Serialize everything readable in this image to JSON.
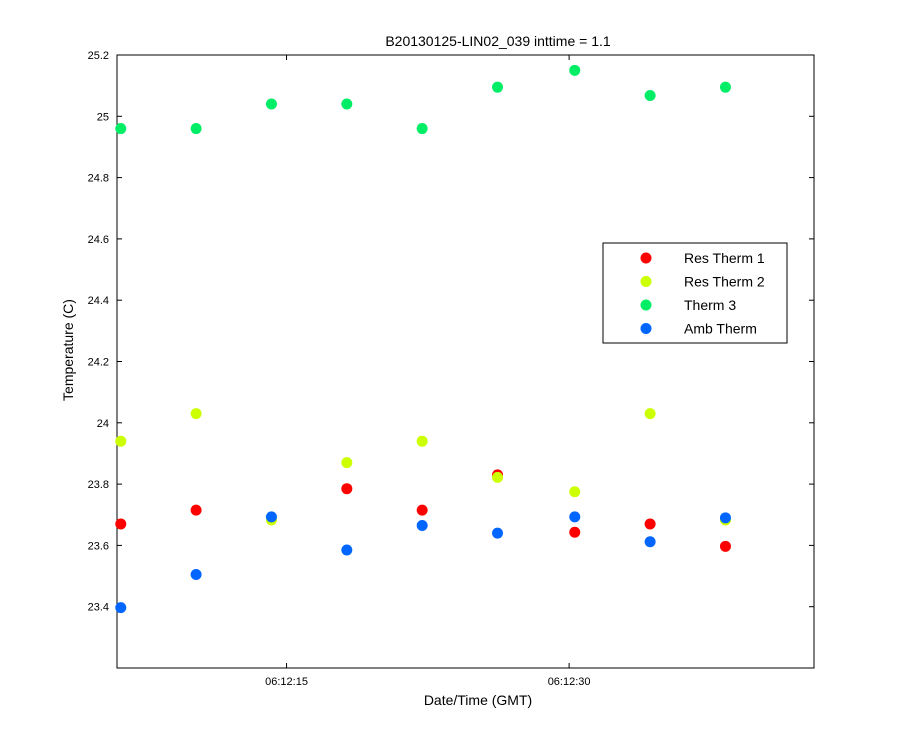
{
  "chart_data": {
    "type": "scatter",
    "title": "B20130125-LIN02_039 inttime = 1.1",
    "xlabel": "Date/Time (GMT)",
    "ylabel": "Temperature (C)",
    "x_unit": "time of day (GMT)",
    "x": [
      "06:12:06.2",
      "06:12:10.2",
      "06:12:14.2",
      "06:12:18.2",
      "06:12:22.2",
      "06:12:26.2",
      "06:12:30.3",
      "06:12:34.3",
      "06:12:38.3"
    ],
    "xlim": [
      "06:12:06",
      "06:12:43"
    ],
    "ylim": [
      23.2,
      25.2
    ],
    "xticks": [
      {
        "value": "06:12:15",
        "label": "06:12:15"
      },
      {
        "value": "06:12:30",
        "label": "06:12:30"
      }
    ],
    "yticks": [
      {
        "value": 23.4,
        "label": "23.4"
      },
      {
        "value": 23.6,
        "label": "23.6"
      },
      {
        "value": 23.8,
        "label": "23.8"
      },
      {
        "value": 24.0,
        "label": "24"
      },
      {
        "value": 24.2,
        "label": "24.2"
      },
      {
        "value": 24.4,
        "label": "24.4"
      },
      {
        "value": 24.6,
        "label": "24.6"
      },
      {
        "value": 24.8,
        "label": "24.8"
      },
      {
        "value": 25.0,
        "label": "25"
      },
      {
        "value": 25.2,
        "label": "25.2"
      }
    ],
    "grid": false,
    "legend_position": "right",
    "series": [
      {
        "name": "Res Therm 1",
        "color": "#ff0000",
        "values": [
          23.67,
          23.715,
          null,
          23.785,
          23.715,
          23.83,
          23.643,
          23.67,
          23.597
        ]
      },
      {
        "name": "Res Therm 2",
        "color": "#ccff00",
        "values": [
          23.94,
          24.03,
          23.683,
          23.87,
          23.94,
          23.822,
          23.775,
          24.03,
          23.683
        ]
      },
      {
        "name": "Therm 3",
        "color": "#00ee66",
        "values": [
          24.96,
          24.96,
          25.04,
          25.04,
          24.96,
          25.095,
          25.15,
          25.068,
          25.095
        ]
      },
      {
        "name": "Amb Therm",
        "color": "#0066ff",
        "values": [
          23.397,
          23.505,
          23.693,
          23.585,
          23.665,
          23.64,
          23.693,
          23.612,
          23.69
        ]
      }
    ]
  }
}
